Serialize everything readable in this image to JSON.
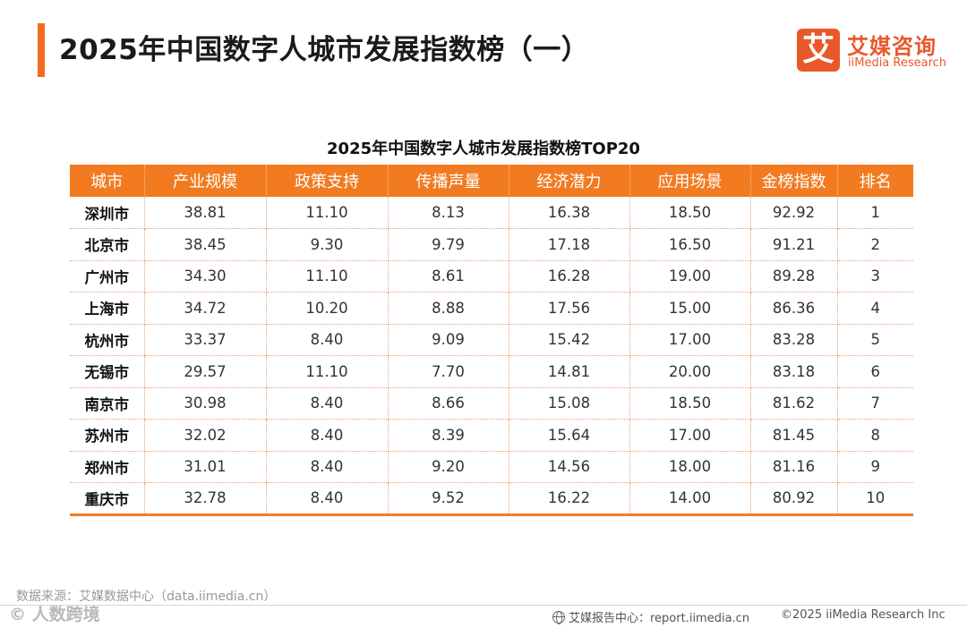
{
  "header": {
    "title": "2025年中国数字人城市发展指数榜（一）"
  },
  "logo": {
    "glyph": "艾",
    "name_cn": "艾媒咨询",
    "name_en": "iiMedia Research"
  },
  "table": {
    "caption": "2025年中国数字人城市发展指数榜TOP20",
    "columns": [
      "城市",
      "产业规模",
      "政策支持",
      "传播声量",
      "经济潜力",
      "应用场景",
      "金榜指数",
      "排名"
    ],
    "rows": [
      [
        "深圳市",
        "38.81",
        "11.10",
        "8.13",
        "16.38",
        "18.50",
        "92.92",
        "1"
      ],
      [
        "北京市",
        "38.45",
        "9.30",
        "9.79",
        "17.18",
        "16.50",
        "91.21",
        "2"
      ],
      [
        "广州市",
        "34.30",
        "11.10",
        "8.61",
        "16.28",
        "19.00",
        "89.28",
        "3"
      ],
      [
        "上海市",
        "34.72",
        "10.20",
        "8.88",
        "17.56",
        "15.00",
        "86.36",
        "4"
      ],
      [
        "杭州市",
        "33.37",
        "8.40",
        "9.09",
        "15.42",
        "17.00",
        "83.28",
        "5"
      ],
      [
        "无锡市",
        "29.57",
        "11.10",
        "7.70",
        "14.81",
        "20.00",
        "83.18",
        "6"
      ],
      [
        "南京市",
        "30.98",
        "8.40",
        "8.66",
        "15.08",
        "18.50",
        "81.62",
        "7"
      ],
      [
        "苏州市",
        "32.02",
        "8.40",
        "8.39",
        "15.64",
        "17.00",
        "81.45",
        "8"
      ],
      [
        "郑州市",
        "31.01",
        "8.40",
        "9.20",
        "14.56",
        "18.00",
        "81.16",
        "9"
      ],
      [
        "重庆市",
        "32.78",
        "8.40",
        "9.52",
        "16.22",
        "14.00",
        "80.92",
        "10"
      ]
    ]
  },
  "footer": {
    "source": "数据来源：艾媒数据中心（data.iimedia.cn）",
    "watermark": "©  人数跨境",
    "report": "艾媒报告中心：report.iimedia.cn",
    "copyright": "©2025  iiMedia Research  Inc"
  },
  "colors": {
    "accent": "#f27b22",
    "logo": "#e9582a"
  }
}
